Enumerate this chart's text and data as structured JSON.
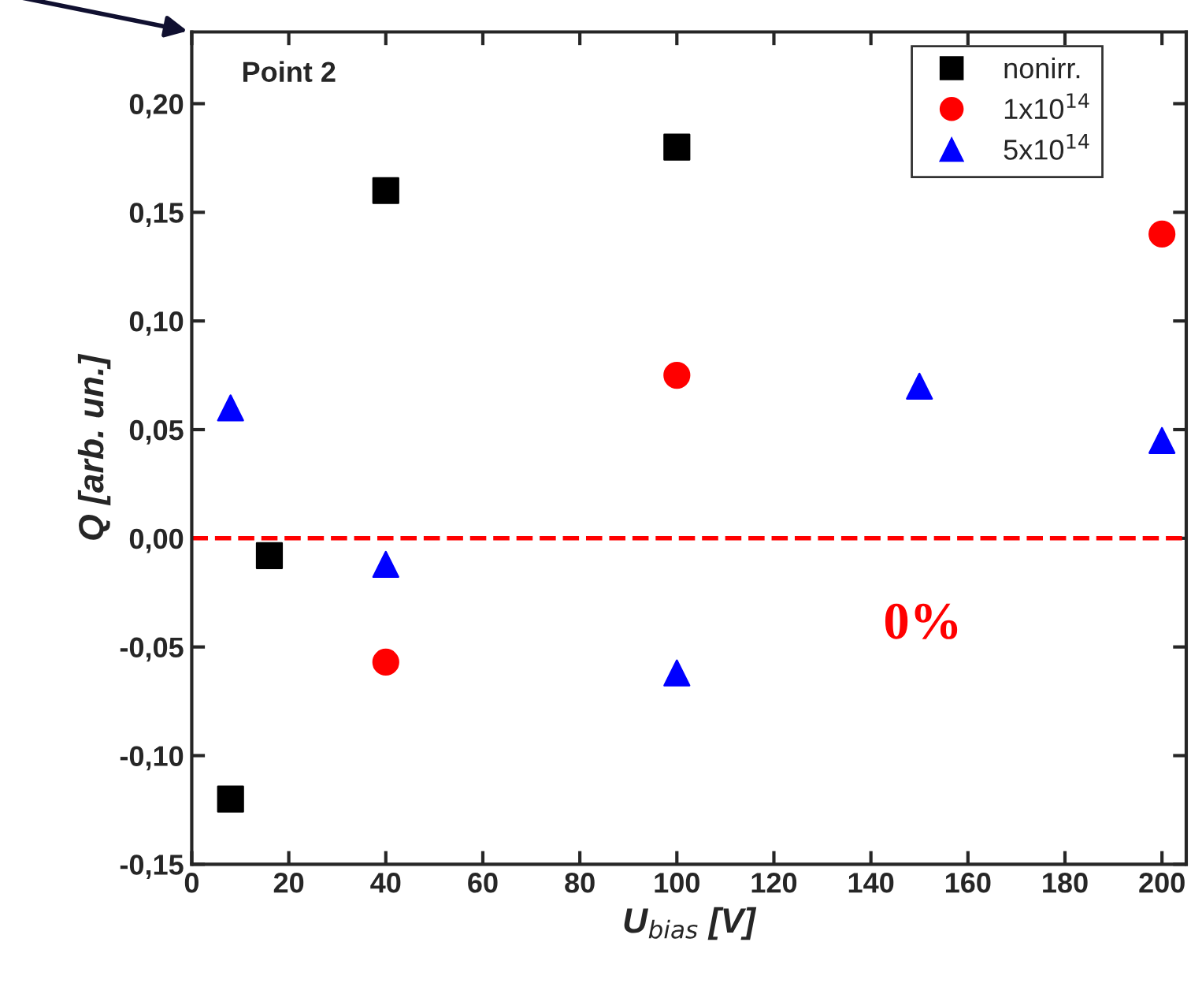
{
  "chart_data": {
    "type": "scatter",
    "xlabel": "U$_{bias}$ [V]",
    "ylabel": "Q [arb. un.]",
    "xlim": [
      0,
      205
    ],
    "xticks": [
      0,
      20,
      40,
      60,
      80,
      100,
      120,
      140,
      160,
      180,
      200
    ],
    "ylim": [
      -0.15,
      0.233
    ],
    "yticks": [
      {
        "value": -0.15,
        "label": "-0,15"
      },
      {
        "value": -0.1,
        "label": "-0,10"
      },
      {
        "value": -0.05,
        "label": "-0,05"
      },
      {
        "value": 0,
        "label": "0,00"
      },
      {
        "value": 0.05,
        "label": "0,05"
      },
      {
        "value": 0.1,
        "label": "0,10"
      },
      {
        "value": 0.15,
        "label": "0,15"
      },
      {
        "value": 0.2,
        "label": "0,20"
      }
    ],
    "series": [
      {
        "name": "nonirr.",
        "color": "#000000",
        "marker": "square",
        "x": [
          8,
          16,
          40,
          100
        ],
        "values": [
          -0.12,
          -0.008,
          0.16,
          0.18
        ]
      },
      {
        "name": "1x10$^{14}$",
        "color": "#ff0000",
        "marker": "circle",
        "x": [
          40,
          100,
          200
        ],
        "values": [
          -0.057,
          0.075,
          0.14
        ]
      },
      {
        "name": "5x10$^{14}$",
        "color": "#0000ff",
        "marker": "triangle",
        "x": [
          8,
          40,
          100,
          150,
          200
        ],
        "values": [
          0.06,
          -0.012,
          -0.062,
          0.07,
          0.045
        ]
      }
    ],
    "ref_lines": [
      {
        "axis": "y",
        "value": 0,
        "color": "#ff0000",
        "line_style": "dashed",
        "label": "0%"
      }
    ],
    "annotations": [
      "Point 2"
    ],
    "legend": "top right",
    "grid": false
  }
}
